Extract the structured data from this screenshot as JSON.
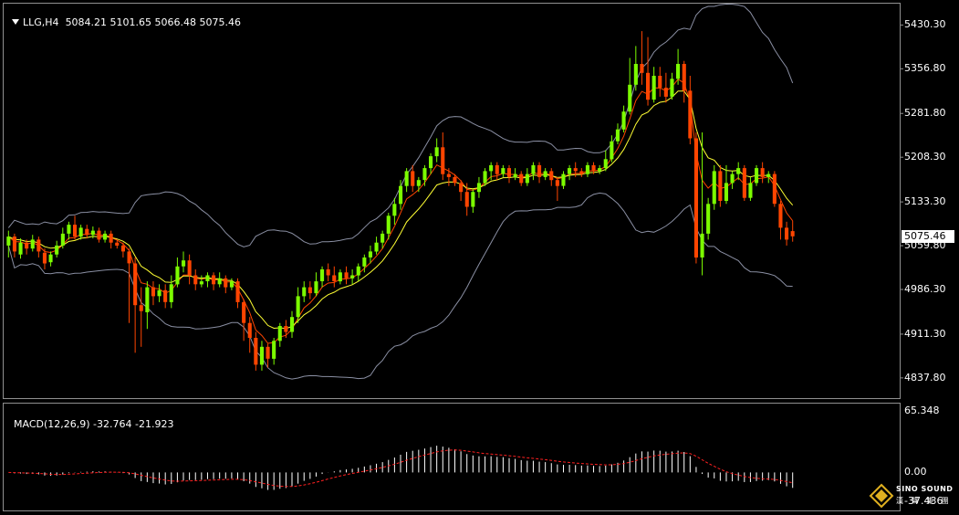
{
  "header": {
    "symbol": "LLG,H4",
    "ohlc": "5084.21 5101.65 5066.48 5075.46"
  },
  "macd_header": {
    "label": "MACD(12,26,9)",
    "values": "-32.764 -21.923"
  },
  "logo": {
    "name": "SINO SOUND",
    "chinese": "漢 聲 集 團"
  },
  "colors": {
    "bull": "#7CFC00",
    "bear": "#FF4500",
    "band": "#8a8fa3",
    "ma_fast": "#FF4500",
    "ma_slow": "#FFFF33",
    "macd_hist": "#ffffff",
    "macd_signal": "#ff2020",
    "grid": "#808080"
  },
  "chart_data": [
    {
      "type": "candlestick",
      "title": "LLG,H4",
      "ylim": [
        4810,
        5460
      ],
      "y_ticks": [
        "5430.30",
        "5356.80",
        "5281.80",
        "5208.30",
        "5133.30",
        "5059.80",
        "4986.30",
        "4911.30",
        "4837.80"
      ],
      "current_price": "5075.46",
      "candles": [
        [
          5060,
          5075,
          5040,
          5085
        ],
        [
          5075,
          5050,
          5040,
          5080
        ],
        [
          5045,
          5065,
          5038,
          5072
        ],
        [
          5065,
          5055,
          5045,
          5070
        ],
        [
          5055,
          5070,
          5050,
          5078
        ],
        [
          5070,
          5050,
          5040,
          5075
        ],
        [
          5048,
          5030,
          5020,
          5055
        ],
        [
          5032,
          5045,
          5025,
          5050
        ],
        [
          5045,
          5060,
          5040,
          5068
        ],
        [
          5060,
          5080,
          5055,
          5090
        ],
        [
          5080,
          5095,
          5070,
          5100
        ],
        [
          5095,
          5075,
          5070,
          5110
        ],
        [
          5075,
          5090,
          5070,
          5095
        ],
        [
          5088,
          5078,
          5072,
          5095
        ],
        [
          5078,
          5085,
          5072,
          5092
        ],
        [
          5085,
          5070,
          5065,
          5090
        ],
        [
          5070,
          5080,
          5065,
          5085
        ],
        [
          5080,
          5065,
          5055,
          5085
        ],
        [
          5065,
          5060,
          5055,
          5070
        ],
        [
          5060,
          5050,
          5040,
          5065
        ],
        [
          5050,
          5030,
          4930,
          5055
        ],
        [
          5030,
          4960,
          4880,
          5040
        ],
        [
          4960,
          4950,
          4890,
          4990
        ],
        [
          4948,
          4990,
          4920,
          5000
        ],
        [
          4990,
          4975,
          4960,
          5000
        ],
        [
          4975,
          4985,
          4965,
          4995
        ],
        [
          4985,
          4965,
          4955,
          4995
        ],
        [
          4965,
          4995,
          4955,
          5010
        ],
        [
          4995,
          5025,
          4990,
          5040
        ],
        [
          5025,
          5035,
          5015,
          5050
        ],
        [
          5035,
          5010,
          4995,
          5045
        ],
        [
          5010,
          4995,
          4985,
          5020
        ],
        [
          4995,
          5000,
          4990,
          5010
        ],
        [
          5000,
          5010,
          4990,
          5015
        ],
        [
          5010,
          4995,
          4985,
          5015
        ],
        [
          4995,
          5005,
          4990,
          5015
        ],
        [
          5005,
          4990,
          4980,
          5010
        ],
        [
          4990,
          5000,
          4985,
          5005
        ],
        [
          5000,
          4965,
          4955,
          5005
        ],
        [
          4965,
          4930,
          4900,
          4970
        ],
        [
          4930,
          4905,
          4880,
          4940
        ],
        [
          4905,
          4860,
          4850,
          4915
        ],
        [
          4860,
          4890,
          4850,
          4900
        ],
        [
          4890,
          4870,
          4855,
          4895
        ],
        [
          4870,
          4900,
          4860,
          4905
        ],
        [
          4900,
          4925,
          4890,
          4930
        ],
        [
          4925,
          4915,
          4905,
          4935
        ],
        [
          4915,
          4940,
          4905,
          4950
        ],
        [
          4940,
          4975,
          4930,
          4990
        ],
        [
          4975,
          4990,
          4965,
          5000
        ],
        [
          4990,
          4980,
          4970,
          5000
        ],
        [
          4980,
          5000,
          4975,
          5015
        ],
        [
          5000,
          5020,
          4990,
          5025
        ],
        [
          5020,
          5010,
          5000,
          5030
        ],
        [
          5010,
          5000,
          4990,
          5025
        ],
        [
          5000,
          5015,
          4995,
          5020
        ],
        [
          5015,
          5005,
          4995,
          5025
        ],
        [
          5005,
          5010,
          4995,
          5020
        ],
        [
          5010,
          5025,
          5000,
          5030
        ],
        [
          5025,
          5040,
          5015,
          5045
        ],
        [
          5040,
          5050,
          5030,
          5060
        ],
        [
          5050,
          5065,
          5045,
          5075
        ],
        [
          5065,
          5080,
          5055,
          5085
        ],
        [
          5080,
          5110,
          5070,
          5115
        ],
        [
          5110,
          5130,
          5095,
          5140
        ],
        [
          5130,
          5160,
          5120,
          5170
        ],
        [
          5160,
          5185,
          5150,
          5190
        ],
        [
          5185,
          5160,
          5150,
          5195
        ],
        [
          5160,
          5170,
          5150,
          5175
        ],
        [
          5170,
          5190,
          5160,
          5195
        ],
        [
          5190,
          5210,
          5180,
          5215
        ],
        [
          5210,
          5225,
          5200,
          5240
        ],
        [
          5225,
          5180,
          5170,
          5250
        ],
        [
          5180,
          5175,
          5160,
          5190
        ],
        [
          5175,
          5165,
          5160,
          5180
        ],
        [
          5165,
          5150,
          5135,
          5170
        ],
        [
          5150,
          5125,
          5110,
          5165
        ],
        [
          5125,
          5150,
          5115,
          5155
        ],
        [
          5150,
          5165,
          5140,
          5175
        ],
        [
          5165,
          5185,
          5160,
          5190
        ],
        [
          5185,
          5195,
          5170,
          5200
        ],
        [
          5195,
          5180,
          5170,
          5200
        ],
        [
          5180,
          5190,
          5175,
          5195
        ],
        [
          5190,
          5175,
          5165,
          5195
        ],
        [
          5175,
          5180,
          5170,
          5190
        ],
        [
          5180,
          5165,
          5160,
          5185
        ],
        [
          5165,
          5180,
          5160,
          5190
        ],
        [
          5180,
          5195,
          5170,
          5200
        ],
        [
          5195,
          5175,
          5165,
          5200
        ],
        [
          5175,
          5185,
          5170,
          5190
        ],
        [
          5185,
          5170,
          5160,
          5190
        ],
        [
          5170,
          5160,
          5135,
          5175
        ],
        [
          5160,
          5180,
          5155,
          5185
        ],
        [
          5180,
          5190,
          5170,
          5195
        ],
        [
          5190,
          5185,
          5175,
          5200
        ],
        [
          5185,
          5180,
          5175,
          5190
        ],
        [
          5180,
          5195,
          5175,
          5200
        ],
        [
          5195,
          5185,
          5180,
          5200
        ],
        [
          5185,
          5190,
          5180,
          5195
        ],
        [
          5190,
          5205,
          5185,
          5220
        ],
        [
          5205,
          5235,
          5200,
          5245
        ],
        [
          5235,
          5255,
          5230,
          5265
        ],
        [
          5255,
          5285,
          5250,
          5295
        ],
        [
          5285,
          5330,
          5280,
          5375
        ],
        [
          5330,
          5365,
          5320,
          5395
        ],
        [
          5365,
          5350,
          5330,
          5420
        ],
        [
          5350,
          5305,
          5295,
          5410
        ],
        [
          5305,
          5345,
          5300,
          5360
        ],
        [
          5345,
          5325,
          5310,
          5360
        ],
        [
          5325,
          5310,
          5300,
          5350
        ],
        [
          5310,
          5340,
          5305,
          5350
        ],
        [
          5340,
          5365,
          5330,
          5390
        ],
        [
          5365,
          5320,
          5300,
          5370
        ],
        [
          5320,
          5240,
          5230,
          5345
        ],
        [
          5240,
          5040,
          5030,
          5250
        ],
        [
          5040,
          5080,
          5010,
          5250
        ],
        [
          5080,
          5130,
          5070,
          5140
        ],
        [
          5130,
          5185,
          5120,
          5195
        ],
        [
          5185,
          5135,
          5125,
          5195
        ],
        [
          5135,
          5165,
          5130,
          5195
        ],
        [
          5165,
          5180,
          5155,
          5185
        ],
        [
          5180,
          5190,
          5170,
          5200
        ],
        [
          5190,
          5140,
          5135,
          5195
        ],
        [
          5140,
          5165,
          5135,
          5175
        ],
        [
          5165,
          5190,
          5160,
          5195
        ],
        [
          5190,
          5175,
          5165,
          5200
        ],
        [
          5175,
          5180,
          5165,
          5185
        ],
        [
          5180,
          5130,
          5125,
          5185
        ],
        [
          5130,
          5090,
          5070,
          5135
        ],
        [
          5090,
          5070,
          5060,
          5100
        ],
        [
          5084.21,
          5075.46,
          5066.48,
          5101.65
        ]
      ]
    },
    {
      "type": "macd",
      "title": "MACD(12,26,9)",
      "params": [
        12,
        26,
        9
      ],
      "macd_value": -32.764,
      "signal_value": -21.923,
      "ylim": [
        -37.436,
        65.348
      ],
      "y_ticks": [
        "65.348",
        "0.00",
        "-37.436"
      ]
    }
  ]
}
